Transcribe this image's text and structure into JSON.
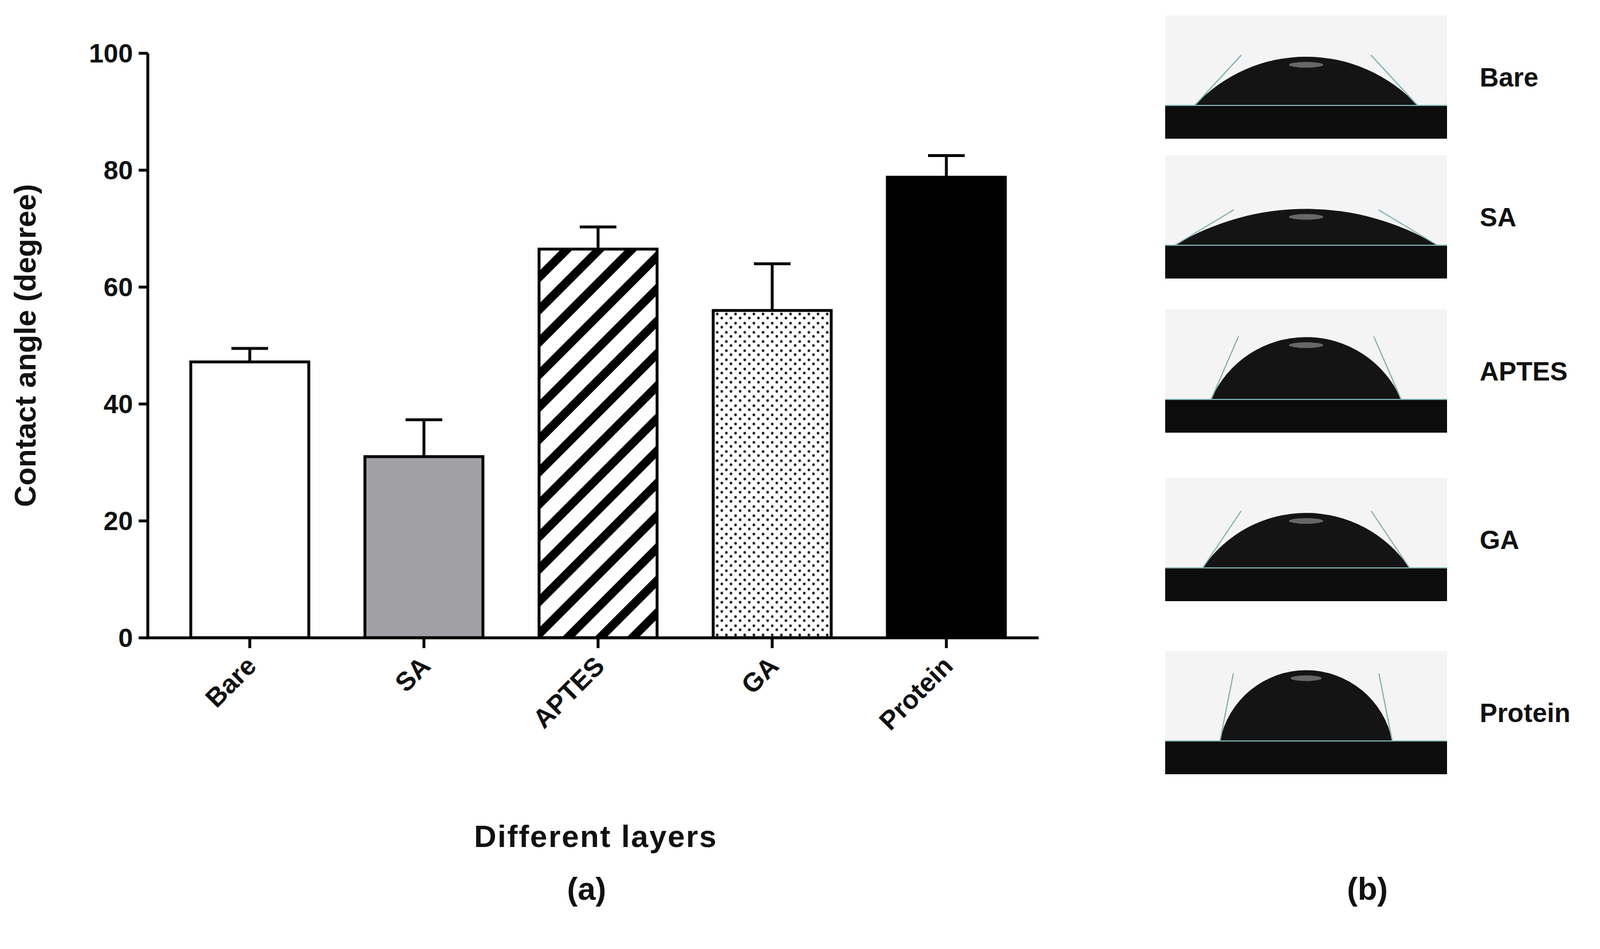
{
  "chart_data": {
    "type": "bar",
    "categories": [
      "Bare",
      "SA",
      "APTES",
      "GA",
      "Protein"
    ],
    "values": [
      47.2,
      31.0,
      66.5,
      56.0,
      78.8
    ],
    "errors": [
      2.3,
      6.3,
      3.8,
      8.0,
      3.7
    ],
    "ylim": [
      0,
      100
    ],
    "yticks": [
      0,
      20,
      40,
      60,
      80,
      100
    ],
    "y_label": "Contact angle (degree)",
    "x_label": "Different layers"
  },
  "panel_labels": [
    "(a)",
    "(b)"
  ]
}
